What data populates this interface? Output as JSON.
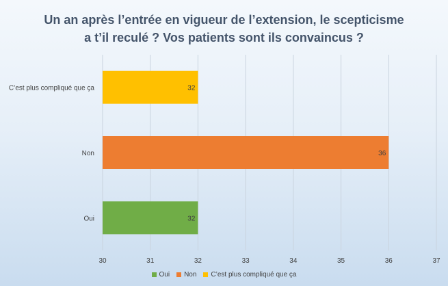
{
  "chart_data": {
    "type": "bar",
    "orientation": "horizontal",
    "title": [
      "Un an après l’entrée en vigueur de l’extension, le scepticisme",
      "a t’il reculé ? Vos patients sont ils convaincus ?"
    ],
    "categories": [
      "C’est plus compliqué que ça",
      "Non",
      "Oui"
    ],
    "values": [
      32,
      36,
      32
    ],
    "colors": [
      "#ffc000",
      "#ed7d31",
      "#70ad47"
    ],
    "xlim": [
      30,
      37
    ],
    "xticks": [
      30,
      31,
      32,
      33,
      34,
      35,
      36,
      37
    ],
    "grid": true,
    "legend_position": "bottom",
    "legend": [
      {
        "label": "Oui",
        "color": "#70ad47"
      },
      {
        "label": "Non",
        "color": "#ed7d31"
      },
      {
        "label": "C’est plus compliqué que ça",
        "color": "#ffc000"
      }
    ]
  }
}
